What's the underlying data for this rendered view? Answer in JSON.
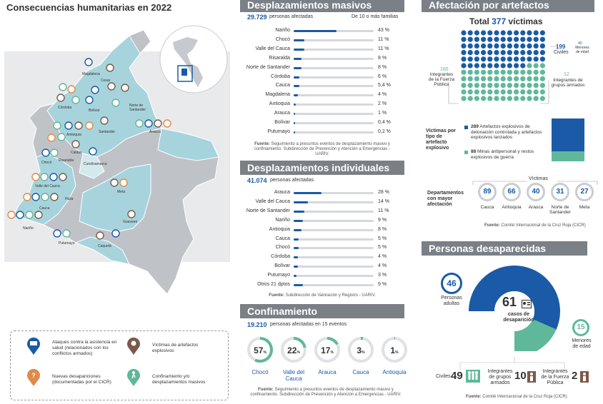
{
  "map": {
    "title": "Consecuencias humanitarias en 2022",
    "regions": [
      "Magdalena",
      "Cesar",
      "Córdoba",
      "Bolívar",
      "Norte de Santander",
      "Antioquia",
      "Santander",
      "Arauca",
      "Caldas",
      "Chocó",
      "Risaralda",
      "Cundinamarca",
      "Valle del Cauca",
      "Huila",
      "Cauca",
      "Meta",
      "Nariño",
      "Guaviare",
      "Putumayo",
      "Caquetá"
    ],
    "legend": [
      {
        "icon": "ambulance-icon",
        "text": "Ataques contra la asistencia en salud (relacionados con los conflictos armados)"
      },
      {
        "icon": "explosion-icon",
        "text": "Víctimas de artefactos explosivos"
      },
      {
        "icon": "question-icon",
        "text": "Nuevas desapariciones (documentadas por el CICR)"
      },
      {
        "icon": "walking-person-icon",
        "text": "Confinamiento y/o desplazamientos masivos"
      }
    ]
  },
  "masivos": {
    "title": "Desplazamientos masivos",
    "total": "29.729",
    "total_label": "personas afectadas",
    "note": "De 10 o más familias",
    "rows": [
      {
        "label": "Nariño",
        "pct": "43 %",
        "v": 43
      },
      {
        "label": "Chocó",
        "pct": "11 %",
        "v": 11
      },
      {
        "label": "Valle del Cauca",
        "pct": "11 %",
        "v": 11
      },
      {
        "label": "Risaralda",
        "pct": "8 %",
        "v": 8
      },
      {
        "label": "Norte de Santander",
        "pct": "8 %",
        "v": 8
      },
      {
        "label": "Córdoba",
        "pct": "6 %",
        "v": 6
      },
      {
        "label": "Cauca",
        "pct": "5,4 %",
        "v": 5.4
      },
      {
        "label": "Magdalena",
        "pct": "4 %",
        "v": 4
      },
      {
        "label": "Antioquia",
        "pct": "2 %",
        "v": 2
      },
      {
        "label": "Arauca",
        "pct": "1 %",
        "v": 1
      },
      {
        "label": "Bolívar",
        "pct": "0,4 %",
        "v": 0.4
      },
      {
        "label": "Putumayo",
        "pct": "0,2 %",
        "v": 0.2
      }
    ],
    "source_b": "Fuente:",
    "source": "Seguimiento a presuntos eventos de desplazamiento masivo y confinamiento. Subdirección de Prevención y Atención a Emergencias - UARIV."
  },
  "individuales": {
    "title": "Desplazamientos individuales",
    "total": "41.074",
    "total_label": "personas afectadas",
    "rows": [
      {
        "label": "Arauca",
        "pct": "28 %",
        "v": 28
      },
      {
        "label": "Valle del Cauca",
        "pct": "14 %",
        "v": 14
      },
      {
        "label": "Norte de Santander",
        "pct": "11 %",
        "v": 11
      },
      {
        "label": "Nariño",
        "pct": "9 %",
        "v": 9
      },
      {
        "label": "Antioquia",
        "pct": "8 %",
        "v": 8
      },
      {
        "label": "Cauca",
        "pct": "5 %",
        "v": 5
      },
      {
        "label": "Chocó",
        "pct": "5 %",
        "v": 5
      },
      {
        "label": "Córdoba",
        "pct": "4 %",
        "v": 4
      },
      {
        "label": "Bolívar",
        "pct": "4 %",
        "v": 4
      },
      {
        "label": "Putumayo",
        "pct": "3 %",
        "v": 3
      },
      {
        "label": "Otros 21 dptos",
        "pct": "9 %",
        "v": 9
      }
    ],
    "source_b": "Fuente:",
    "source": "Subdirección de Valoración y Registro - UARIV."
  },
  "confinamiento": {
    "title": "Confinamiento",
    "total": "19.210",
    "total_label": "personas afectadas en 15 eventos",
    "donuts": [
      {
        "value": "57",
        "v": 57,
        "label": "Chocó"
      },
      {
        "value": "22",
        "v": 22,
        "label": "Valle del Cauca"
      },
      {
        "value": "17",
        "v": 17,
        "label": "Arauca"
      },
      {
        "value": "3",
        "v": 3,
        "label": "Cauca"
      },
      {
        "value": "1",
        "v": 1,
        "label": "Antioquia"
      }
    ],
    "pct_sign": "%",
    "source_b": "Fuente:",
    "source": "Seguimiento a presuntos eventos de desplazamiento masivo y confinamiento. Subdirección de Prevención y Atención a Emergencias - UARIV."
  },
  "explosivos": {
    "title": "Afectación por artefactos explosivos",
    "total_prefix": "Total",
    "total_num": "377",
    "total_suffix": "víctimas",
    "civiles_num": "199",
    "civiles_label": "Civiles",
    "menores_num": "40",
    "menores_label": "Menores de edad",
    "fuerza_num": "166",
    "fuerza_label": "Integrantes de la Fuerza Pública",
    "grupos_num": "12",
    "grupos_label": "Integrantes de grupos armados",
    "tipo_title": "Víctimas por tipo de artefacto explosivo",
    "tipo1_num": "289",
    "tipo1_text": "Artefactos explosivos de detonación controlada y artefactos explosivos lanzados",
    "tipo1_v": 289,
    "tipo2_num": "88",
    "tipo2_text": "Minas antipersonal y restos explosivos de guerra",
    "tipo2_v": 88,
    "dept_title": "Departamentos con mayor afectación",
    "victimas_label": "Víctimas",
    "depts": [
      {
        "value": "89",
        "label": "Cauca"
      },
      {
        "value": "66",
        "label": "Antioquia"
      },
      {
        "value": "40",
        "label": "Arauca"
      },
      {
        "value": "31",
        "label": "Norte de Santander"
      },
      {
        "value": "27",
        "label": "Meta"
      }
    ],
    "source_b": "Fuente:",
    "source": "Comité Internacional de la Cruz Roja (CICR)",
    "colors": {
      "blue": "#1a5aa6",
      "green": "#5fb89a"
    }
  },
  "desaparecidas": {
    "title": "Personas desaparecidas",
    "total": "61",
    "total_label": "casos de desaparición",
    "adultas_num": "46",
    "adultas_label": "Personas adultas",
    "menores_num": "15",
    "menores_label": "Menores de edad",
    "civiles_label": "Civiles",
    "civiles_num": "49",
    "grupos_label": "Integrantes de grupos armados",
    "grupos_num": "10",
    "fuerza_label": "Integrantes de la Fuerza Pública",
    "fuerza_num": "2",
    "source_b": "Fuente:",
    "source": "Comité Internacional de la Cruz Roja (CICR)"
  }
}
